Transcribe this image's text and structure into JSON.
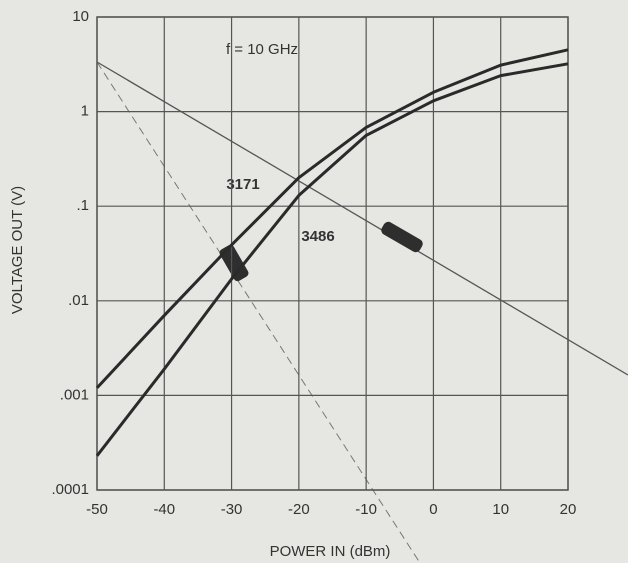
{
  "chart_data": {
    "type": "line",
    "annotation": "f = 10 GHz",
    "x_label": "POWER IN (dBm)",
    "y_label": "VOLTAGE OUT (V)",
    "x": [
      -50,
      -40,
      -30,
      -20,
      -10,
      0,
      10,
      20
    ],
    "series": [
      {
        "name": "3171",
        "color": "#2a2a2a",
        "values": [
          0.0012,
          0.007,
          0.039,
          0.2,
          0.68,
          1.6,
          3.1,
          4.5
        ]
      },
      {
        "name": "3486",
        "color": "#2a2a2a",
        "values": [
          0.00023,
          0.0019,
          0.017,
          0.13,
          0.56,
          1.3,
          2.4,
          3.2
        ]
      }
    ],
    "xlim": [
      -50,
      20
    ],
    "xticks": [
      -50,
      -40,
      -30,
      -20,
      -10,
      0,
      10,
      20
    ],
    "ylim": [
      0.0001,
      10
    ],
    "yticks": [
      {
        "value": 0.0001,
        "label": ".0001"
      },
      {
        "value": 0.001,
        "label": ".001"
      },
      {
        "value": 0.01,
        "label": ".01"
      },
      {
        "value": 0.1,
        "label": ".1"
      },
      1,
      10
    ],
    "log_y": true,
    "grid": true
  }
}
